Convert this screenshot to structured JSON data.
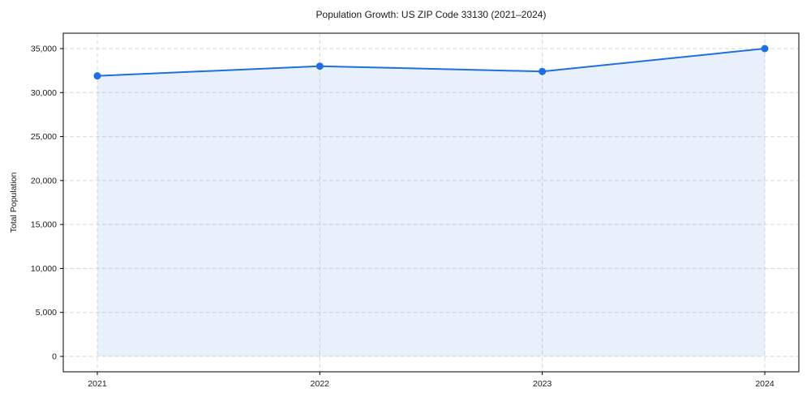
{
  "chart_data": {
    "type": "area",
    "title": "Population Growth: US ZIP Code 33130 (2021–2024)",
    "xlabel": "",
    "ylabel": "Total Population",
    "x_tick_labels": [
      "2021",
      "2022",
      "2023",
      "2024"
    ],
    "categories": [
      2021,
      2022,
      2023,
      2024
    ],
    "series": [
      {
        "name": "Total Population",
        "values": [
          31900,
          33000,
          32400,
          35000
        ]
      }
    ],
    "ylim": [
      -1750,
      36750
    ],
    "y_ticks": [
      0,
      5000,
      10000,
      15000,
      20000,
      25000,
      30000,
      35000
    ],
    "y_tick_labels": [
      "0",
      "5,000",
      "10,000",
      "15,000",
      "20,000",
      "25,000",
      "30,000",
      "35,000"
    ],
    "grid": true,
    "grid_style": "dashed",
    "legend_position": "none",
    "marker": "circle",
    "colors": {
      "line": "#1f6fe0",
      "marker": "#1f6fe0",
      "fill": "#1f6fe0",
      "fill_opacity": 0.1,
      "gridline": "#d9d9d9",
      "spine": "#000000",
      "text": "#1a1a1a",
      "background": "#ffffff"
    }
  }
}
